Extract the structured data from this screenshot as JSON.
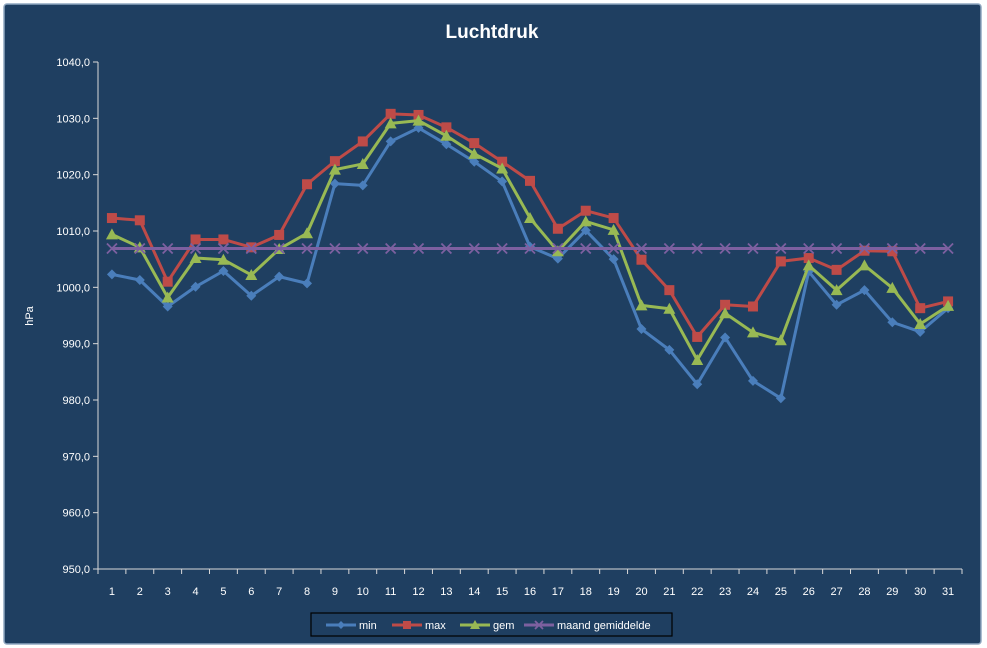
{
  "chart_data": {
    "type": "line",
    "title": "Luchtdruk",
    "xlabel": "",
    "ylabel": "hPa",
    "ylim": [
      950,
      1040
    ],
    "y_ticks": [
      "950,0",
      "960,0",
      "970,0",
      "980,0",
      "990,0",
      "1000,0",
      "1010,0",
      "1020,0",
      "1030,0",
      "1040,0"
    ],
    "y_tick_values": [
      950,
      960,
      970,
      980,
      990,
      1000,
      1010,
      1020,
      1030,
      1040
    ],
    "grid": false,
    "legend_position": "bottom",
    "categories": [
      "1",
      "2",
      "3",
      "4",
      "5",
      "6",
      "7",
      "8",
      "9",
      "10",
      "11",
      "12",
      "13",
      "14",
      "15",
      "16",
      "17",
      "18",
      "19",
      "20",
      "21",
      "22",
      "23",
      "24",
      "25",
      "26",
      "27",
      "28",
      "29",
      "30",
      "31"
    ],
    "series": [
      {
        "name": "min",
        "color": "#4a7ebb",
        "marker": "diamond",
        "values": [
          1002.3,
          1001.3,
          996.6,
          1000.1,
          1002.9,
          998.5,
          1001.9,
          1000.7,
          1018.4,
          1018.1,
          1025.9,
          1028.3,
          1025.4,
          1022.3,
          1018.8,
          1007.2,
          1005.1,
          1010.1,
          1005.0,
          992.6,
          988.9,
          982.8,
          991.1,
          983.4,
          980.3,
          1002.8,
          996.9,
          999.5,
          993.8,
          992.1,
          996.3
        ]
      },
      {
        "name": "max",
        "color": "#be4b48",
        "marker": "square",
        "values": [
          1012.3,
          1011.9,
          1001.0,
          1008.5,
          1008.5,
          1007.1,
          1009.3,
          1018.3,
          1022.4,
          1025.9,
          1030.8,
          1030.6,
          1028.4,
          1025.6,
          1022.3,
          1018.9,
          1010.4,
          1013.6,
          1012.3,
          1004.9,
          999.5,
          991.2,
          996.9,
          996.6,
          1004.6,
          1005.2,
          1003.1,
          1006.5,
          1006.4,
          996.3,
          997.5
        ]
      },
      {
        "name": "gem",
        "color": "#98b954",
        "marker": "triangle",
        "values": [
          1009.4,
          1007.1,
          998.2,
          1005.2,
          1004.9,
          1002.2,
          1006.8,
          1009.6,
          1020.9,
          1021.9,
          1029.1,
          1029.6,
          1026.9,
          1023.7,
          1021.1,
          1012.3,
          1006.4,
          1011.7,
          1010.2,
          996.8,
          996.2,
          987.1,
          995.4,
          992.0,
          990.6,
          1003.9,
          999.5,
          1003.9,
          999.9,
          993.5,
          996.7
        ]
      },
      {
        "name": "maand gemiddelde",
        "color": "#7d60a0",
        "marker": "x",
        "values": [
          1006.9,
          1006.9,
          1006.9,
          1006.9,
          1006.9,
          1006.9,
          1006.9,
          1006.9,
          1006.9,
          1006.9,
          1006.9,
          1006.9,
          1006.9,
          1006.9,
          1006.9,
          1006.9,
          1006.9,
          1006.9,
          1006.9,
          1006.9,
          1006.9,
          1006.9,
          1006.9,
          1006.9,
          1006.9,
          1006.9,
          1006.9,
          1006.9,
          1006.9,
          1006.9,
          1006.9
        ]
      }
    ],
    "colors": {
      "background": "#1f3f61",
      "frame_border": "#8fa7c0",
      "axis": "#d9d9d9",
      "text": "#ffffff",
      "legend_border": "#000000"
    }
  }
}
